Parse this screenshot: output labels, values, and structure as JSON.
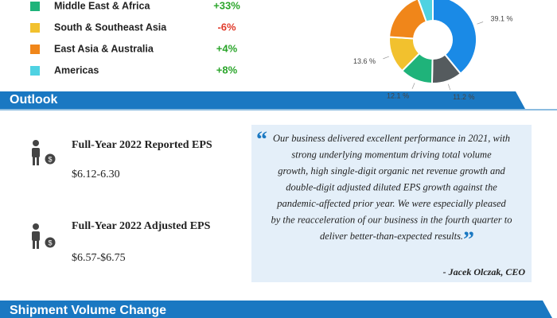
{
  "regions": [
    {
      "name": "Middle East & Africa",
      "change": "+33%",
      "color": "#1fb37a",
      "change_color": "#2aa52a"
    },
    {
      "name": "South & Southeast Asia",
      "change": "-6%",
      "color": "#f2c12e",
      "change_color": "#e03a2a"
    },
    {
      "name": "East Asia & Australia",
      "change": "+4%",
      "color": "#f0861a",
      "change_color": "#2aa52a"
    },
    {
      "name": "Americas",
      "change": "+8%",
      "color": "#4fd2e2",
      "change_color": "#2aa52a"
    }
  ],
  "chart_data": {
    "type": "donut",
    "values": [
      39.1,
      11.2,
      12.1,
      13.6,
      18.5,
      5.5
    ],
    "value_labels": [
      "39.1 %",
      "11.2 %",
      "12.1 %",
      "13.6 %",
      null,
      null
    ],
    "colors": [
      "#1a8ae6",
      "#555b5e",
      "#1fb37a",
      "#f2c12e",
      "#f0861a",
      "#4fd2e2"
    ]
  },
  "outlook": {
    "title": "Outlook",
    "eps": [
      {
        "label": "Full-Year 2022 Reported EPS",
        "value": "$6.12-6.30"
      },
      {
        "label": "Full-Year 2022 Adjusted EPS",
        "value": "$6.57-$6.75"
      }
    ],
    "quote": {
      "open_mark": "“",
      "close_mark": "”",
      "lines": [
        "Our business delivered excellent performance in 2021, with",
        "strong underlying momentum driving total volume",
        "growth, high single-digit organic net revenue growth and",
        "double-digit adjusted diluted EPS growth against the",
        "pandemic-affected prior year. We were especially pleased",
        "by the reacceleration of our business in the fourth quarter to",
        "deliver better-than-expected results."
      ],
      "author": "- Jacek Olczak, CEO"
    }
  },
  "next_section": {
    "title": "Shipment Volume Change"
  }
}
